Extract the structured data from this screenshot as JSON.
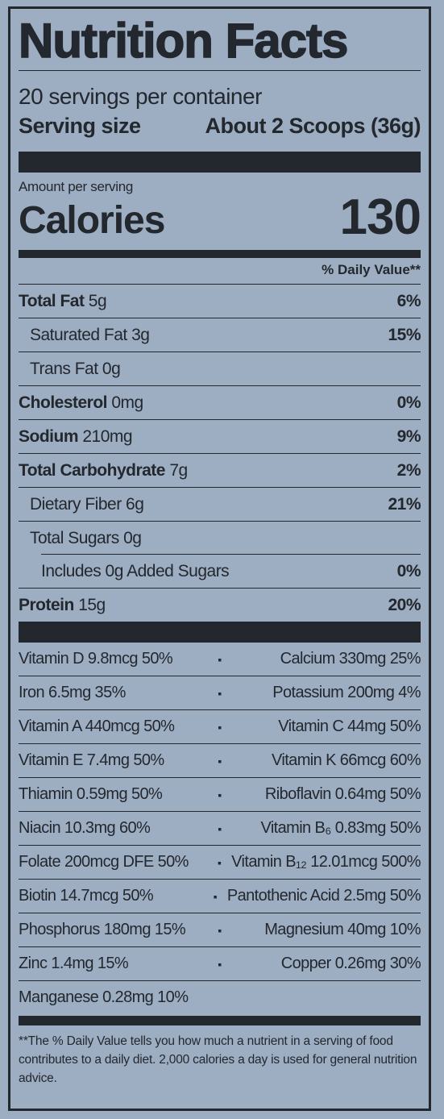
{
  "title": "Nutrition Facts",
  "servings": "20 servings per container",
  "serving_size_label": "Serving size",
  "serving_size_value": "About 2 Scoops (36g)",
  "amount_per_serving": "Amount per serving",
  "calories_label": "Calories",
  "calories_value": "130",
  "daily_value_header": "% Daily Value**",
  "nutrients": [
    {
      "name": "Total Fat",
      "amount": "5g",
      "dv": "6%"
    },
    {
      "name": "Saturated Fat 3g",
      "amount": "",
      "dv": "15%"
    },
    {
      "name": "Trans Fat 0g",
      "amount": "",
      "dv": ""
    },
    {
      "name": "Cholesterol",
      "amount": "0mg",
      "dv": "0%"
    },
    {
      "name": "Sodium",
      "amount": "210mg",
      "dv": "9%"
    },
    {
      "name": "Total Carbohydrate",
      "amount": "7g",
      "dv": "2%"
    },
    {
      "name": "Dietary Fiber 6g",
      "amount": "",
      "dv": "21%"
    },
    {
      "name": "Total Sugars 0g",
      "amount": "",
      "dv": ""
    },
    {
      "name": "Includes 0g Added Sugars",
      "amount": "",
      "dv": "0%"
    },
    {
      "name": "Protein",
      "amount": "15g",
      "dv": "20%"
    }
  ],
  "vitamins": [
    {
      "left": "Vitamin D 9.8mcg 50%",
      "right": "Calcium 330mg 25%"
    },
    {
      "left": "Iron 6.5mg 35%",
      "right": "Potassium 200mg 4%"
    },
    {
      "left": "Vitamin A 440mcg 50%",
      "right": "Vitamin C 44mg 50%"
    },
    {
      "left": "Vitamin E 7.4mg 50%",
      "right": "Vitamin K 66mcg 60%"
    },
    {
      "left": "Thiamin 0.59mg 50%",
      "right": "Riboflavin 0.64mg 50%"
    },
    {
      "left": "Niacin 10.3mg 60%",
      "right": "Vitamin B₆ 0.83mg 50%"
    },
    {
      "left": "Folate 200mcg DFE 50%",
      "right": "Vitamin B₁₂ 12.01mcg 500%"
    },
    {
      "left": "Biotin 14.7mcg 50%",
      "right": "Pantothenic Acid 2.5mg 50%"
    },
    {
      "left": "Phosphorus 180mg 15%",
      "right": "Magnesium 40mg 10%"
    },
    {
      "left": "Zinc 1.4mg 15%",
      "right": "Copper 0.26mg 30%"
    },
    {
      "left": "Manganese 0.28mg 10%",
      "right": ""
    }
  ],
  "separator": "▪",
  "footnote": "**The % Daily Value tells you how much a nutrient in a serving of food contributes to a daily diet. 2,000 calories a day is used for general nutrition advice.",
  "colors": {
    "background": "#9daec2",
    "ink": "#23272e"
  }
}
